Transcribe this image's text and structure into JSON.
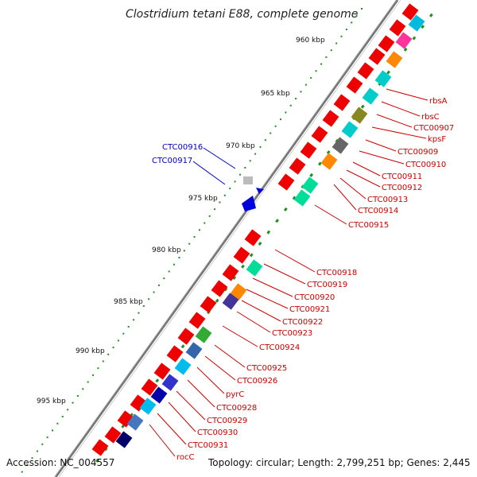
{
  "title": "Clostridium tetani E88, complete genome",
  "footer": {
    "accession": "Accession: NC_004557",
    "summary": "Topology: circular; Length: 2,799,251 bp; Genes: 2,445"
  },
  "kbp_markers": [
    "960 kbp",
    "965 kbp",
    "970 kbp",
    "975 kbp",
    "980 kbp",
    "985 kbp",
    "990 kbp",
    "995 kbp"
  ],
  "colors": {
    "reverse_strand_label": "#0000cc",
    "forward_strand_label": "#cc0000",
    "cds": "#ee0000",
    "tick": "#228b22",
    "backbone": "#888888"
  },
  "reverse_strand_genes": [
    "CTC00916",
    "CTC00917"
  ],
  "forward_strand_genes": [
    "rbsA",
    "rbsC",
    "CTC00907",
    "kpsF",
    "CTC00909",
    "CTC00910",
    "CTC00911",
    "CTC00912",
    "CTC00913",
    "CTC00914",
    "CTC00915",
    "CTC00918",
    "CTC00919",
    "CTC00920",
    "CTC00921",
    "CTC00922",
    "CTC00923",
    "CTC00924",
    "CTC00925",
    "CTC00926",
    "pyrC",
    "CTC00928",
    "CTC00929",
    "CTC00930",
    "CTC00931",
    "rocC"
  ]
}
